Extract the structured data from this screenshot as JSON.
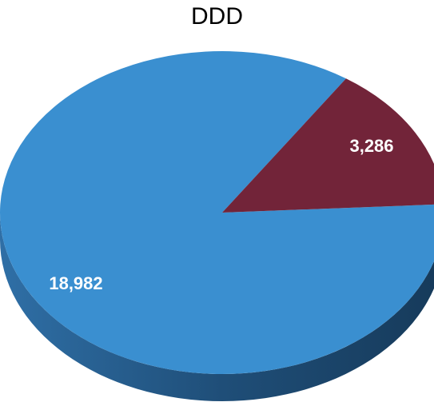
{
  "chart_data": {
    "type": "pie",
    "title": "DDD",
    "slices": [
      {
        "value": 18982,
        "label": "18,982",
        "color": "#3a8fd0"
      },
      {
        "value": 3286,
        "label": "3,286",
        "color": "#722439"
      }
    ],
    "style": "3d"
  }
}
